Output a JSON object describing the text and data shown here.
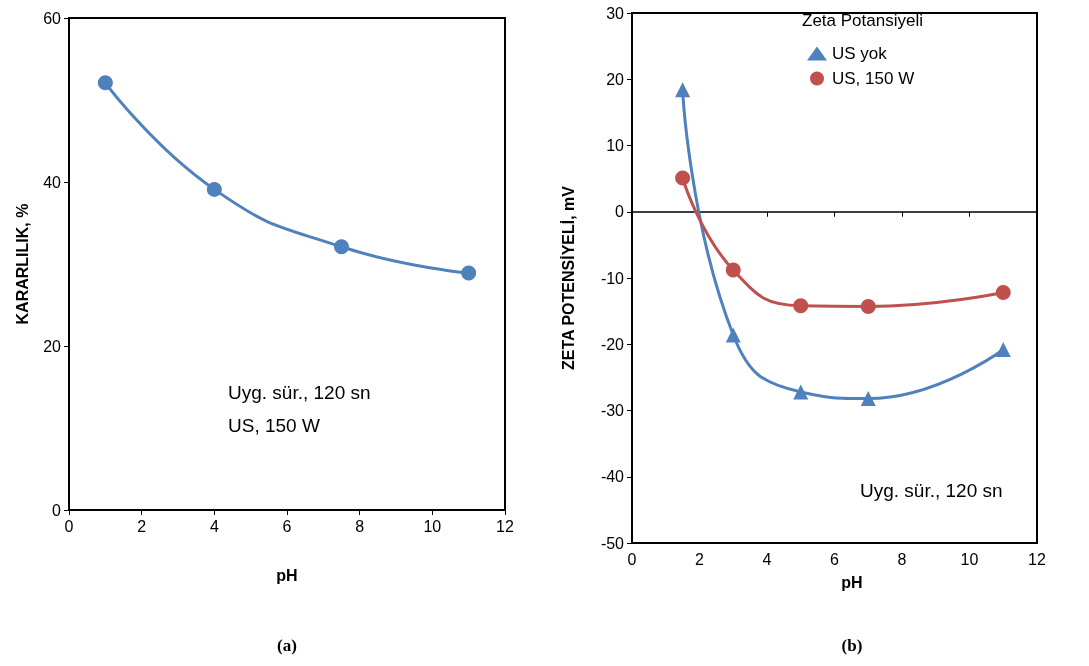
{
  "chart_data": [
    {
      "type": "line",
      "subtitle": "(a)",
      "xlabel": "pH",
      "ylabel": "KARARLILIK, %",
      "x": [
        1,
        4,
        7.5,
        11
      ],
      "xlim": [
        0,
        12
      ],
      "xticks": [
        0,
        2,
        4,
        6,
        8,
        10,
        12
      ],
      "ylim": [
        0,
        60
      ],
      "yticks": [
        0,
        20,
        40,
        60
      ],
      "marker": "circle",
      "legend": false,
      "series": [
        {
          "color": "#4f81bd",
          "values": [
            52.1,
            39.1,
            32.1,
            28.9
          ]
        }
      ],
      "annotations": [
        "Uyg. sür., 120 sn",
        "US, 150 W"
      ]
    },
    {
      "type": "line",
      "subtitle": "(b)",
      "xlabel": "pH",
      "ylabel": "ZETA POTENSİYELİ, mV",
      "x": [
        1.5,
        3,
        5,
        7,
        11
      ],
      "xlim": [
        0,
        12
      ],
      "xticks": [
        0,
        2,
        4,
        6,
        8,
        10,
        12
      ],
      "ylim": [
        -50,
        30
      ],
      "yticks": [
        -50,
        -40,
        -30,
        -20,
        -10,
        0,
        10,
        20,
        30
      ],
      "legend": "top right",
      "legend_title": "Zeta Potansiyeli",
      "series": [
        {
          "name": "US yok",
          "color": "#4f81bd",
          "marker": "triangle",
          "values": [
            18.4,
            -18.6,
            -27.2,
            -28.2,
            -20.8
          ]
        },
        {
          "name": "US, 150 W",
          "color": "#c0504d",
          "marker": "circle",
          "values": [
            5.1,
            -8.8,
            -14.2,
            -14.3,
            -12.2
          ]
        }
      ],
      "annotations": [
        "Uyg. sür., 120 sn"
      ]
    }
  ]
}
